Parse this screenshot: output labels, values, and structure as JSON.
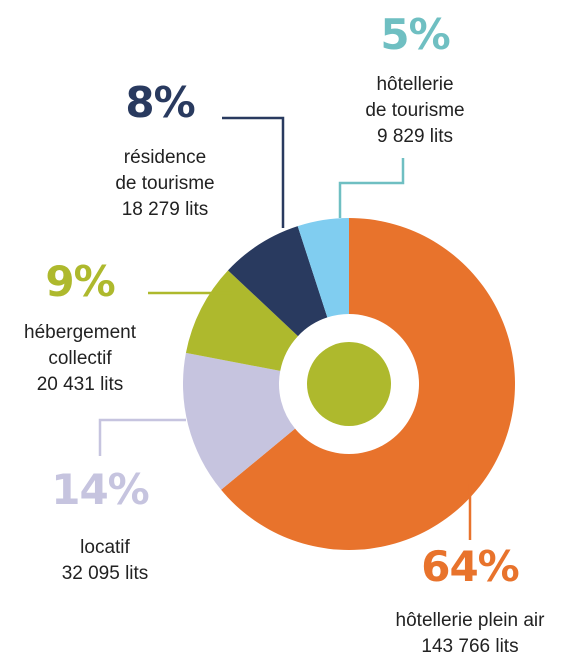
{
  "chart_data": {
    "type": "donut",
    "categories": [
      "hôtellerie plein air",
      "locatif",
      "hébergement\ncollectif",
      "résidence\nde tourisme",
      "hôtellerie\nde tourisme"
    ],
    "capacities": [
      "143 766 lits",
      "32 095 lits",
      "20 431 lits",
      "18 279 lits",
      "9 829 lits"
    ],
    "values": [
      64,
      14,
      9,
      8,
      5
    ],
    "value_labels": [
      "64%",
      "14%",
      "9%",
      "8%",
      "5%"
    ],
    "colors": [
      "#e8732c",
      "#c6c4df",
      "#aeb92d",
      "#293a5f",
      "#80cdf0"
    ],
    "label_colors": [
      "#e8732c",
      "#c6c4df",
      "#aeb92d",
      "#293a5f",
      "#6fbfc2"
    ]
  }
}
